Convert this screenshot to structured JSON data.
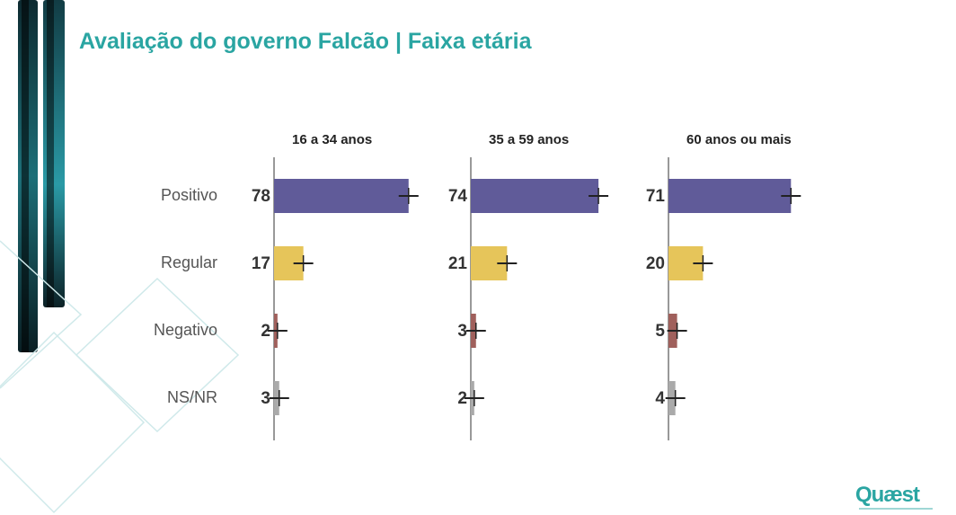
{
  "title": "Avaliação do governo Falcão | Faixa etária",
  "logo": "Quæst",
  "colors": {
    "title": "#2aa5a2",
    "Positivo": "#605b99",
    "Regular": "#e6c55a",
    "Negativo": "#a0605c",
    "NS/NR": "#aaaaaa"
  },
  "chart_data": {
    "type": "bar",
    "orientation": "horizontal",
    "categories": [
      "Positivo",
      "Regular",
      "Negativo",
      "NS/NR"
    ],
    "series": [
      {
        "name": "16 a 34 anos",
        "values": [
          78,
          17,
          2,
          3
        ]
      },
      {
        "name": "35 a 59 anos",
        "values": [
          74,
          21,
          3,
          2
        ]
      },
      {
        "name": "60 anos ou mais",
        "values": [
          71,
          20,
          5,
          4
        ]
      }
    ],
    "error_bars": true,
    "xlim": [
      0,
      100
    ],
    "grid": false,
    "legend": "none"
  }
}
